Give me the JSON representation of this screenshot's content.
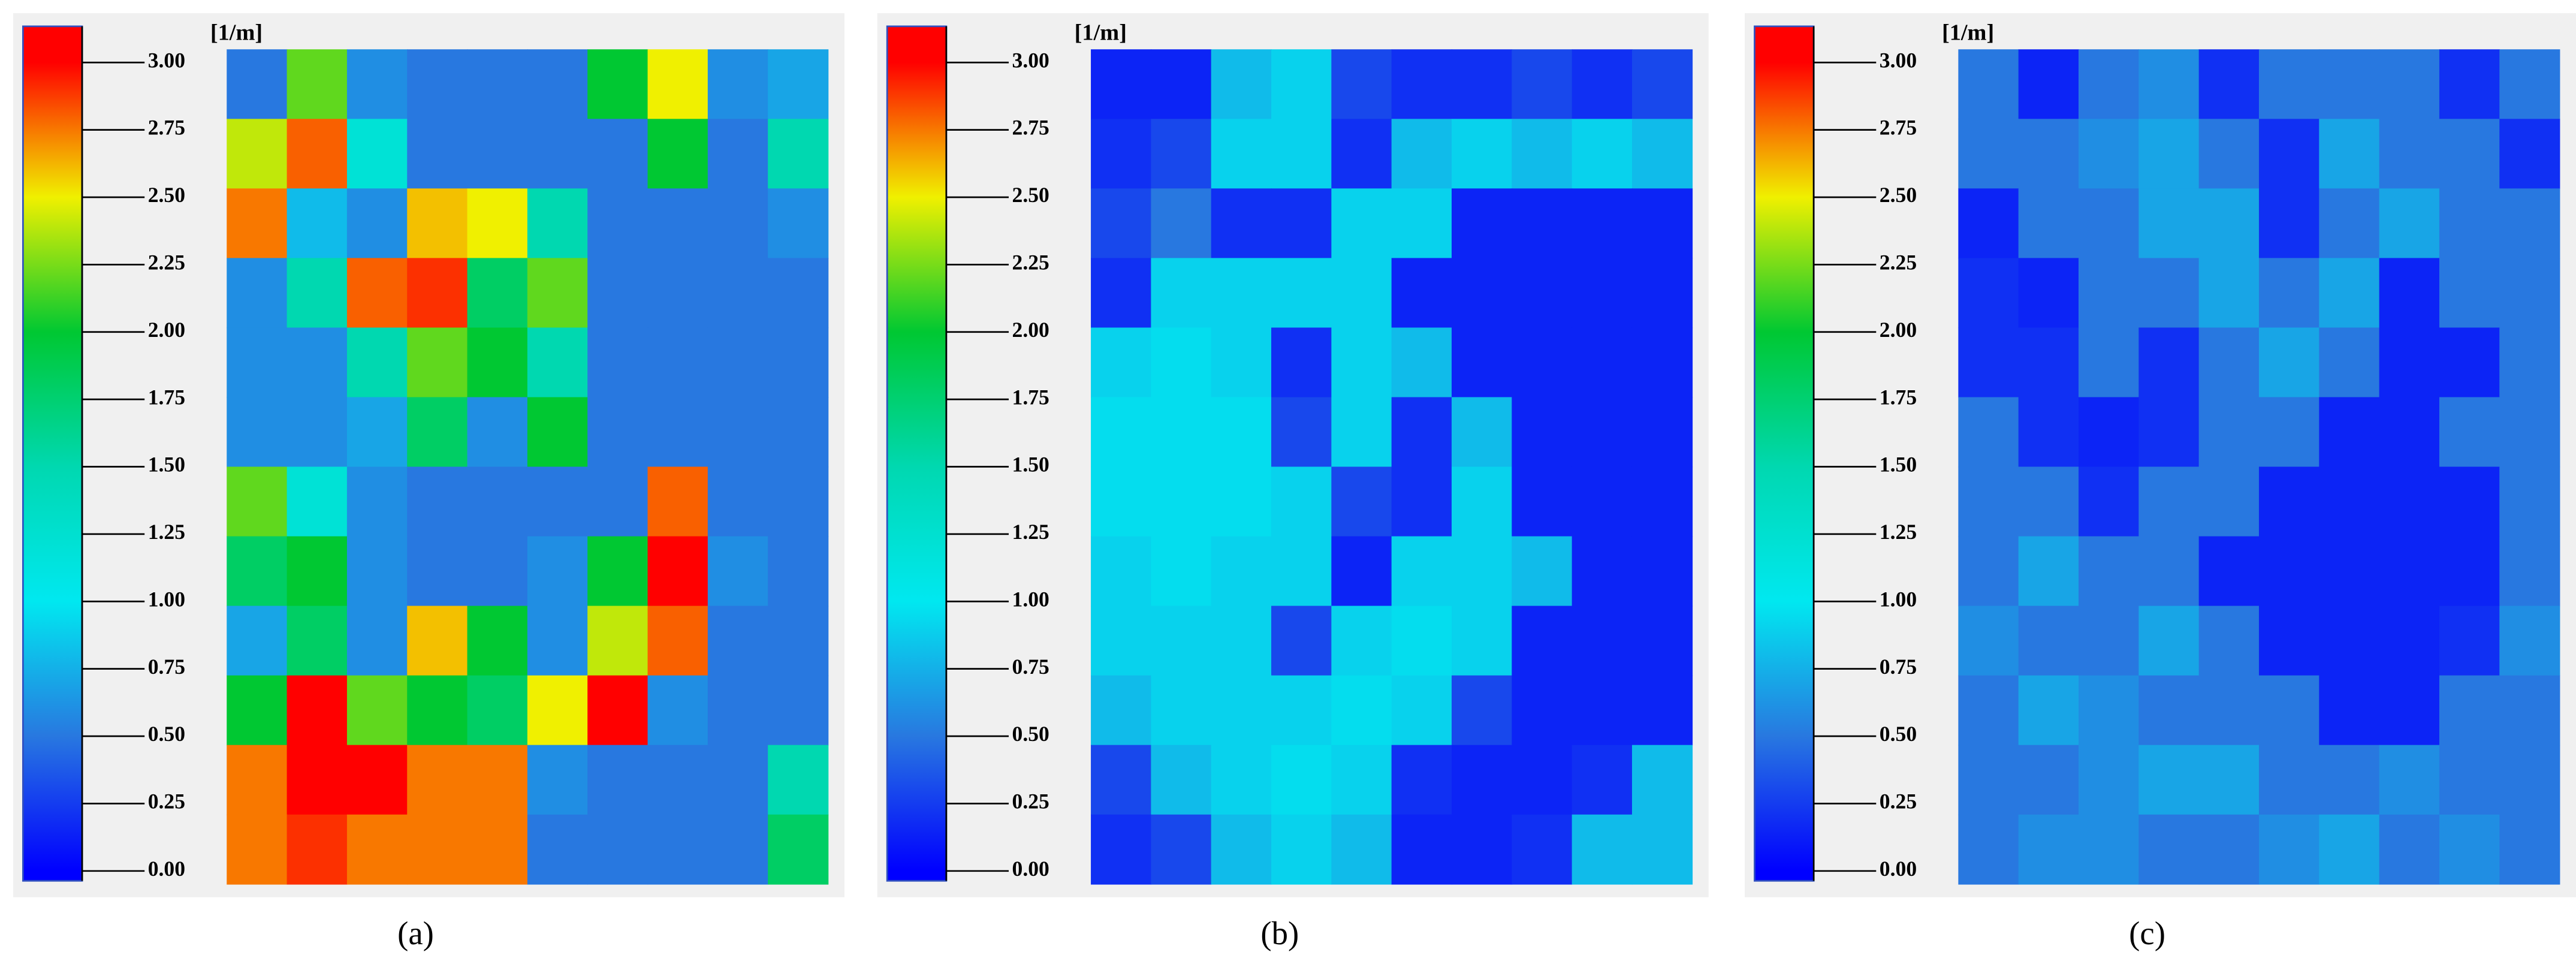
{
  "chart_data": [
    {
      "type": "heatmap",
      "label": "(a)",
      "colorbar_title": "[1/m]",
      "zlim": [
        0,
        3
      ],
      "zticks": [
        {
          "value": 0,
          "label": "0.00"
        },
        {
          "value": 0.25,
          "label": "0.25"
        },
        {
          "value": 0.5,
          "label": "0.50"
        },
        {
          "value": 0.75,
          "label": "0.75"
        },
        {
          "value": 1,
          "label": "1.00"
        },
        {
          "value": 1.25,
          "label": "1.25"
        },
        {
          "value": 1.5,
          "label": "1.50"
        },
        {
          "value": 1.75,
          "label": "1.75"
        },
        {
          "value": 2,
          "label": "2.00"
        },
        {
          "value": 2.25,
          "label": "2.25"
        },
        {
          "value": 2.5,
          "label": "2.50"
        },
        {
          "value": 2.75,
          "label": "2.75"
        },
        {
          "value": 3,
          "label": "3.00"
        }
      ],
      "colorscale": [
        "#0000ff",
        "#2878e0",
        "#00e8f0",
        "#00d8b0",
        "#00c832",
        "#f0f000",
        "#ff0000"
      ],
      "values": [
        [
          0.5,
          2.2,
          0.6,
          0.5,
          0.5,
          0.5,
          2.0,
          2.5,
          0.6,
          0.7
        ],
        [
          2.4,
          2.8,
          1.2,
          0.5,
          0.5,
          0.5,
          0.5,
          2.0,
          0.5,
          1.5
        ],
        [
          2.75,
          0.8,
          0.6,
          2.6,
          2.5,
          1.5,
          0.5,
          0.5,
          0.5,
          0.6
        ],
        [
          0.6,
          1.5,
          2.8,
          2.9,
          1.8,
          2.2,
          0.5,
          0.5,
          0.5,
          0.5
        ],
        [
          0.6,
          0.6,
          1.5,
          2.2,
          2.0,
          1.5,
          0.5,
          0.5,
          0.5,
          0.5
        ],
        [
          0.6,
          0.6,
          0.7,
          1.8,
          0.6,
          2.0,
          0.5,
          0.5,
          0.5,
          0.5
        ],
        [
          2.2,
          1.2,
          0.6,
          0.5,
          0.5,
          0.5,
          0.5,
          2.8,
          0.5,
          0.5
        ],
        [
          1.8,
          2.0,
          0.6,
          0.5,
          0.5,
          0.6,
          2.0,
          3.0,
          0.6,
          0.5
        ],
        [
          0.7,
          1.8,
          0.6,
          2.6,
          2.0,
          0.6,
          2.4,
          2.8,
          0.5,
          0.5
        ],
        [
          2.0,
          3.0,
          2.2,
          2.0,
          1.8,
          2.5,
          3.0,
          0.6,
          0.5,
          0.5
        ],
        [
          2.75,
          3.0,
          3.0,
          2.75,
          2.75,
          0.6,
          0.5,
          0.5,
          0.5,
          1.5
        ],
        [
          2.75,
          2.9,
          2.75,
          2.75,
          2.75,
          0.5,
          0.5,
          0.5,
          0.5,
          1.8
        ]
      ]
    },
    {
      "type": "heatmap",
      "label": "(b)",
      "colorbar_title": "[1/m]",
      "zlim": [
        0,
        3
      ],
      "zticks": [
        {
          "value": 0,
          "label": "0.00"
        },
        {
          "value": 0.25,
          "label": "0.25"
        },
        {
          "value": 0.5,
          "label": "0.50"
        },
        {
          "value": 0.75,
          "label": "0.75"
        },
        {
          "value": 1,
          "label": "1.00"
        },
        {
          "value": 1.25,
          "label": "1.25"
        },
        {
          "value": 1.5,
          "label": "1.50"
        },
        {
          "value": 1.75,
          "label": "1.75"
        },
        {
          "value": 2,
          "label": "2.00"
        },
        {
          "value": 2.25,
          "label": "2.25"
        },
        {
          "value": 2.5,
          "label": "2.50"
        },
        {
          "value": 2.75,
          "label": "2.75"
        },
        {
          "value": 3,
          "label": "3.00"
        }
      ],
      "colorscale": [
        "#0000ff",
        "#2878e0",
        "#00e8f0",
        "#00d8b0",
        "#00c832",
        "#f0f000",
        "#ff0000"
      ],
      "values": [
        [
          0.15,
          0.15,
          0.8,
          0.9,
          0.3,
          0.2,
          0.2,
          0.3,
          0.2,
          0.3
        ],
        [
          0.2,
          0.3,
          0.9,
          0.9,
          0.2,
          0.8,
          0.9,
          0.8,
          0.9,
          0.8
        ],
        [
          0.3,
          0.5,
          0.2,
          0.2,
          0.9,
          0.9,
          0.15,
          0.15,
          0.15,
          0.15
        ],
        [
          0.2,
          0.9,
          0.9,
          0.9,
          0.9,
          0.15,
          0.15,
          0.15,
          0.15,
          0.15
        ],
        [
          0.9,
          0.95,
          0.9,
          0.2,
          0.9,
          0.8,
          0.15,
          0.15,
          0.15,
          0.15
        ],
        [
          0.95,
          0.95,
          0.95,
          0.3,
          0.9,
          0.2,
          0.8,
          0.15,
          0.15,
          0.15
        ],
        [
          0.95,
          0.95,
          0.95,
          0.9,
          0.3,
          0.2,
          0.9,
          0.15,
          0.15,
          0.15
        ],
        [
          0.9,
          0.95,
          0.9,
          0.9,
          0.15,
          0.9,
          0.9,
          0.8,
          0.15,
          0.15
        ],
        [
          0.9,
          0.9,
          0.9,
          0.3,
          0.9,
          0.95,
          0.9,
          0.15,
          0.15,
          0.15
        ],
        [
          0.8,
          0.9,
          0.9,
          0.9,
          0.95,
          0.9,
          0.3,
          0.15,
          0.15,
          0.15
        ],
        [
          0.3,
          0.8,
          0.9,
          0.95,
          0.9,
          0.2,
          0.15,
          0.15,
          0.2,
          0.8
        ],
        [
          0.2,
          0.3,
          0.8,
          0.9,
          0.8,
          0.15,
          0.15,
          0.2,
          0.8,
          0.8
        ]
      ]
    },
    {
      "type": "heatmap",
      "label": "(c)",
      "colorbar_title": "[1/m]",
      "zlim": [
        0,
        3
      ],
      "zticks": [
        {
          "value": 0,
          "label": "0.00"
        },
        {
          "value": 0.25,
          "label": "0.25"
        },
        {
          "value": 0.5,
          "label": "0.50"
        },
        {
          "value": 0.75,
          "label": "0.75"
        },
        {
          "value": 1,
          "label": "1.00"
        },
        {
          "value": 1.25,
          "label": "1.25"
        },
        {
          "value": 1.5,
          "label": "1.50"
        },
        {
          "value": 1.75,
          "label": "1.75"
        },
        {
          "value": 2,
          "label": "2.00"
        },
        {
          "value": 2.25,
          "label": "2.25"
        },
        {
          "value": 2.5,
          "label": "2.50"
        },
        {
          "value": 2.75,
          "label": "2.75"
        },
        {
          "value": 3,
          "label": "3.00"
        }
      ],
      "colorscale": [
        "#0000ff",
        "#2878e0",
        "#00e8f0",
        "#00d8b0",
        "#00c832",
        "#f0f000",
        "#ff0000"
      ],
      "values": [
        [
          0.5,
          0.15,
          0.5,
          0.6,
          0.2,
          0.5,
          0.5,
          0.5,
          0.2,
          0.5
        ],
        [
          0.5,
          0.5,
          0.6,
          0.7,
          0.5,
          0.2,
          0.7,
          0.5,
          0.5,
          0.2
        ],
        [
          0.15,
          0.5,
          0.5,
          0.7,
          0.7,
          0.2,
          0.5,
          0.7,
          0.5,
          0.5
        ],
        [
          0.2,
          0.15,
          0.5,
          0.5,
          0.7,
          0.5,
          0.7,
          0.15,
          0.5,
          0.5
        ],
        [
          0.2,
          0.2,
          0.5,
          0.2,
          0.5,
          0.7,
          0.5,
          0.15,
          0.15,
          0.5
        ],
        [
          0.5,
          0.2,
          0.15,
          0.2,
          0.5,
          0.5,
          0.15,
          0.15,
          0.5,
          0.5
        ],
        [
          0.5,
          0.5,
          0.2,
          0.5,
          0.5,
          0.15,
          0.15,
          0.15,
          0.15,
          0.5
        ],
        [
          0.5,
          0.7,
          0.5,
          0.5,
          0.15,
          0.15,
          0.15,
          0.15,
          0.15,
          0.5
        ],
        [
          0.6,
          0.5,
          0.5,
          0.7,
          0.5,
          0.15,
          0.15,
          0.15,
          0.2,
          0.6
        ],
        [
          0.5,
          0.7,
          0.6,
          0.5,
          0.5,
          0.5,
          0.15,
          0.15,
          0.5,
          0.5
        ],
        [
          0.5,
          0.5,
          0.6,
          0.7,
          0.7,
          0.5,
          0.5,
          0.6,
          0.5,
          0.5
        ],
        [
          0.5,
          0.6,
          0.6,
          0.5,
          0.5,
          0.6,
          0.7,
          0.5,
          0.6,
          0.5
        ]
      ]
    }
  ]
}
